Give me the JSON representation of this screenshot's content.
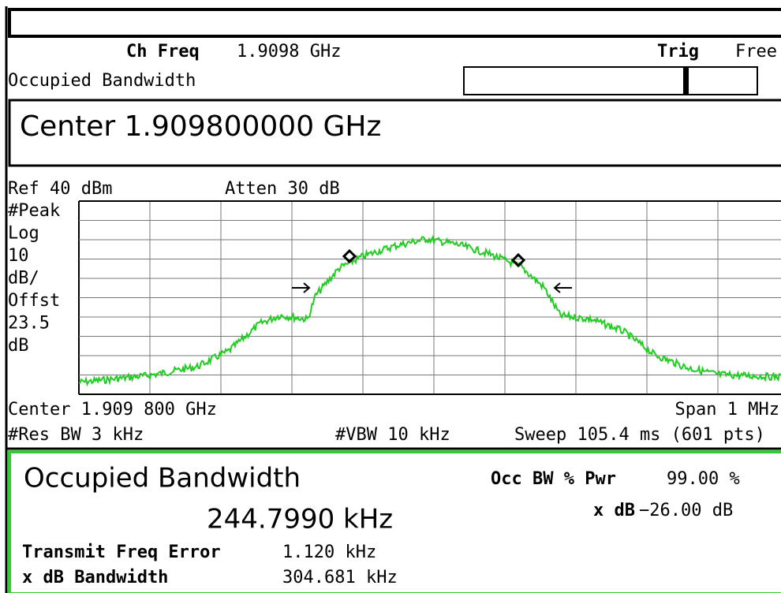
{
  "header": {
    "ch_freq_label": "Ch Freq",
    "ch_freq": "1.9098 GHz",
    "trig_label": "Trig",
    "trig": "Free",
    "mode": "Occupied Bandwidth",
    "center": "Center 1.909800000 GHz"
  },
  "plot": {
    "ref": "Ref 40 dBm",
    "atten": "Atten 30 dB",
    "scale_labels": [
      "#Peak",
      "Log",
      "10",
      "dB/",
      "Offst",
      "23.5",
      "dB"
    ],
    "center": "Center 1.909 800 GHz",
    "span": "Span 1 MHz",
    "res_bw": "#Res BW 3 kHz",
    "vbw": "#VBW 10 kHz",
    "sweep": "Sweep 105.4 ms (601 pts)"
  },
  "results": {
    "title": "Occupied Bandwidth",
    "value": "244.7990 kHz",
    "occ_bw_label": "Occ BW % Pwr",
    "occ_bw": "99.00 %",
    "xdb_label": "x dB",
    "xdb": "−26.00 dB",
    "tfe_label": "Transmit Freq Error",
    "tfe": "1.120 kHz",
    "xdb_bw_label": "x dB Bandwidth",
    "xdb_bw": "304.681 kHz"
  }
}
